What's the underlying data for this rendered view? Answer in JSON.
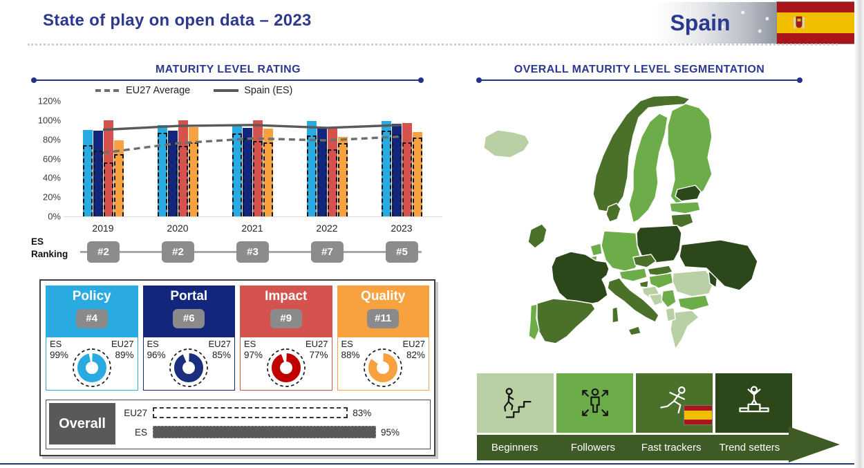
{
  "page": {
    "title": "State of play on open data – 2023",
    "country": "Spain"
  },
  "colors": {
    "accent_navy": "#2B3990",
    "section_line_navy": "#24338A",
    "ranking_badge_gray": "#8C8C8C",
    "overall_gray": "#595959",
    "banner_green": "#3E5B25",
    "flag_red": "#AA151B",
    "flag_yellow": "#F1BF00",
    "bottom_line_navy": "#203864"
  },
  "chart_data": [
    {
      "id": "maturity-bars",
      "type": "bar",
      "title": "MATURITY LEVEL RATING",
      "categories": [
        "2019",
        "2020",
        "2021",
        "2022",
        "2023"
      ],
      "series": [
        {
          "name": "Policy (ES)",
          "color": "#29ABE2",
          "values": [
            90,
            95,
            95,
            99,
            99
          ]
        },
        {
          "name": "Portal (ES)",
          "color": "#13267E",
          "values": [
            89,
            89,
            92,
            91,
            96
          ]
        },
        {
          "name": "Impact (ES)",
          "color": "#D4534E",
          "values": [
            100,
            100,
            100,
            92,
            97
          ]
        },
        {
          "name": "Quality (ES)",
          "color": "#F8A13F",
          "values": [
            79,
            93,
            91,
            83,
            88
          ]
        }
      ],
      "overlay_series": [
        {
          "name": "Policy (EU27 Average)",
          "values": [
            74,
            87,
            86,
            84,
            89
          ]
        },
        {
          "name": "Portal (EU27 Average)",
          "values": [
            68,
            76,
            81,
            79,
            85
          ]
        },
        {
          "name": "Impact (EU27 Average)",
          "values": [
            56,
            73,
            78,
            70,
            77
          ]
        },
        {
          "name": "Quality (EU27 Average)",
          "values": [
            65,
            77,
            77,
            76,
            82
          ]
        }
      ],
      "lines": [
        {
          "name": "EU27 Average",
          "style": "dashed",
          "color": "#6E6E6E",
          "values": [
            66,
            76,
            81,
            79,
            83
          ]
        },
        {
          "name": "Spain (ES)",
          "style": "solid",
          "color": "#595959",
          "values": [
            90,
            94,
            95,
            92,
            95
          ]
        }
      ],
      "ylim": [
        0,
        120
      ],
      "yticks": [
        "0%",
        "20%",
        "40%",
        "60%",
        "80%",
        "100%",
        "120%"
      ],
      "grid": false,
      "legend_position": "top"
    },
    {
      "id": "es-ranking-timeline",
      "type": "line",
      "label": "ES Ranking",
      "label_lines": [
        "ES",
        "Ranking"
      ],
      "categories": [
        "2019",
        "2020",
        "2021",
        "2022",
        "2023"
      ],
      "values": [
        "#2",
        "#2",
        "#3",
        "#7",
        "#5"
      ]
    },
    {
      "id": "dimension-gauges",
      "type": "pie",
      "items": [
        {
          "title": "Policy",
          "rank": "#4",
          "es_label": "ES",
          "eu_label": "EU27",
          "es_pct": "99%",
          "eu_pct": "89%",
          "es_value": 99,
          "eu_value": 89,
          "color": "#29ABE2",
          "donut_color": "#29ABE2"
        },
        {
          "title": "Portal",
          "rank": "#6",
          "es_label": "ES",
          "eu_label": "EU27",
          "es_pct": "96%",
          "eu_pct": "85%",
          "es_value": 96,
          "eu_value": 85,
          "color": "#13267E",
          "donut_color": "#1A2F7E"
        },
        {
          "title": "Impact",
          "rank": "#9",
          "es_label": "ES",
          "eu_label": "EU27",
          "es_pct": "97%",
          "eu_pct": "77%",
          "es_value": 97,
          "eu_value": 77,
          "color": "#D4534E",
          "donut_color": "#C00000"
        },
        {
          "title": "Quality",
          "rank": "#11",
          "es_label": "ES",
          "eu_label": "EU27",
          "es_pct": "88%",
          "eu_pct": "82%",
          "es_value": 88,
          "eu_value": 82,
          "color": "#F8A13F",
          "donut_color": "#F8A13F"
        }
      ]
    },
    {
      "id": "overall-bars",
      "type": "bar",
      "label": "Overall",
      "rows": [
        {
          "label": "EU27",
          "display": "83%",
          "value": 83,
          "style": "dashed"
        },
        {
          "label": "ES",
          "display": "95%",
          "value": 95,
          "style": "solid"
        }
      ]
    },
    {
      "id": "segmentation-map",
      "type": "heatmap",
      "title": "OVERALL MATURITY LEVEL SEGMENTATION",
      "segments": [
        {
          "label": "Beginners",
          "color": "#B9D0A5",
          "icon": "stairs-climb-icon",
          "text": "dark"
        },
        {
          "label": "Followers",
          "color": "#6CAC49",
          "icon": "expand-person-icon",
          "text": "dark"
        },
        {
          "label": "Fast trackers",
          "color": "#4B7029",
          "icon": "runner-icon",
          "text": "light"
        },
        {
          "label": "Trend setters",
          "color": "#2C481B",
          "icon": "podium-winner-icon",
          "text": "light"
        }
      ],
      "highlight_country": "Spain",
      "highlight_segment": "Fast trackers",
      "country_segments": {
        "Iceland": "Beginners",
        "Norway": "Fast trackers",
        "Sweden": "Followers",
        "Finland": "Followers",
        "Estonia": "Trend setters",
        "Latvia": "Followers",
        "Lithuania": "Fast trackers",
        "Denmark": "Fast trackers",
        "Ireland": "Fast trackers",
        "Poland": "Trend setters",
        "Germany": "Followers",
        "Netherlands": "Followers",
        "Belgium": "Followers",
        "Czechia": "Fast trackers",
        "Slovakia": "Fast trackers",
        "Austria": "Followers",
        "Hungary": "Followers",
        "Slovenia": "Fast trackers",
        "Croatia": "Beginners",
        "Bosnia and Herzegovina": "Beginners",
        "Serbia": "Followers",
        "Romania": "Beginners",
        "Moldova": "Trend setters",
        "Ukraine": "Trend setters",
        "Bulgaria": "Followers",
        "Greece": "Beginners",
        "Albania": "Beginners",
        "Italy": "Fast trackers",
        "France": "Trend setters",
        "Spain": "Fast trackers",
        "Portugal": "Followers"
      }
    }
  ]
}
